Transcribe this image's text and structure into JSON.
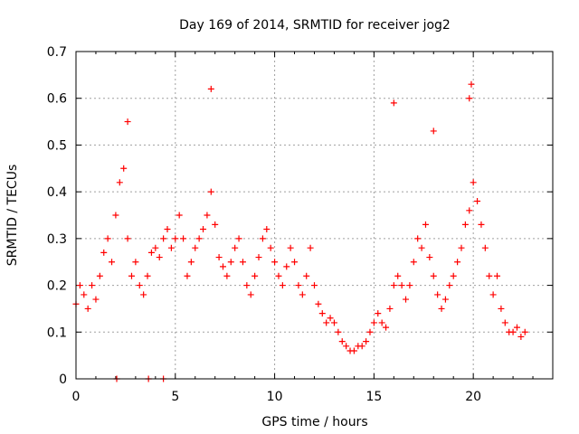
{
  "chart_data": {
    "type": "scatter",
    "title": "Day 169 of 2014, SRMTID for receiver jog2",
    "xlabel": "GPS time / hours",
    "ylabel": "SRMTID / TECUs",
    "xlim": [
      0,
      24
    ],
    "ylim": [
      0,
      0.7
    ],
    "xticks": [
      "0",
      "5",
      "10",
      "15",
      "20"
    ],
    "yticks": [
      "0",
      "0.1",
      "0.2",
      "0.3",
      "0.4",
      "0.5",
      "0.6",
      "0.7"
    ],
    "grid": true,
    "marker": "plus",
    "series": [
      {
        "name": "SRMTID",
        "color": "#ff0000",
        "x": [
          0.0,
          0.2,
          0.4,
          0.6,
          0.8,
          1.0,
          1.2,
          1.4,
          1.6,
          1.8,
          2.0,
          2.2,
          2.4,
          2.6,
          2.8,
          3.0,
          3.2,
          3.4,
          3.6,
          3.8,
          4.0,
          4.2,
          4.4,
          4.6,
          4.8,
          5.0,
          5.2,
          5.4,
          5.6,
          5.8,
          6.0,
          6.2,
          6.4,
          6.6,
          6.8,
          7.0,
          7.2,
          7.4,
          7.6,
          7.8,
          8.0,
          8.2,
          8.4,
          8.6,
          8.8,
          9.0,
          9.2,
          9.4,
          9.6,
          9.8,
          10.0,
          10.2,
          10.4,
          10.6,
          10.8,
          11.0,
          11.2,
          11.4,
          11.6,
          11.8,
          12.0,
          12.2,
          12.4,
          12.6,
          12.8,
          13.0,
          13.2,
          13.4,
          13.6,
          13.8,
          14.0,
          14.2,
          14.4,
          14.6,
          14.8,
          15.0,
          15.2,
          15.4,
          15.6,
          15.8,
          16.0,
          16.2,
          16.4,
          16.6,
          16.8,
          17.0,
          17.2,
          17.4,
          17.6,
          17.8,
          18.0,
          18.2,
          18.4,
          18.6,
          18.8,
          19.0,
          19.2,
          19.4,
          19.6,
          19.8,
          20.0,
          20.2,
          20.4,
          20.6,
          20.8,
          21.0,
          21.2,
          21.4,
          21.6,
          21.8,
          22.0,
          22.2,
          22.4,
          22.6,
          2.05,
          3.65,
          4.4,
          2.6,
          6.8,
          16.0,
          18.0,
          19.8,
          19.9
        ],
        "y": [
          0.16,
          0.2,
          0.18,
          0.15,
          0.2,
          0.17,
          0.22,
          0.27,
          0.3,
          0.25,
          0.35,
          0.42,
          0.45,
          0.3,
          0.22,
          0.25,
          0.2,
          0.18,
          0.22,
          0.27,
          0.28,
          0.26,
          0.3,
          0.32,
          0.28,
          0.3,
          0.35,
          0.3,
          0.22,
          0.25,
          0.28,
          0.3,
          0.32,
          0.35,
          0.4,
          0.33,
          0.26,
          0.24,
          0.22,
          0.25,
          0.28,
          0.3,
          0.25,
          0.2,
          0.18,
          0.22,
          0.26,
          0.3,
          0.32,
          0.28,
          0.25,
          0.22,
          0.2,
          0.24,
          0.28,
          0.25,
          0.2,
          0.18,
          0.22,
          0.28,
          0.2,
          0.16,
          0.14,
          0.12,
          0.13,
          0.12,
          0.1,
          0.08,
          0.07,
          0.06,
          0.06,
          0.07,
          0.07,
          0.08,
          0.1,
          0.12,
          0.14,
          0.12,
          0.11,
          0.15,
          0.2,
          0.22,
          0.2,
          0.17,
          0.2,
          0.25,
          0.3,
          0.28,
          0.33,
          0.26,
          0.22,
          0.18,
          0.15,
          0.17,
          0.2,
          0.22,
          0.25,
          0.28,
          0.33,
          0.36,
          0.42,
          0.38,
          0.33,
          0.28,
          0.22,
          0.18,
          0.22,
          0.15,
          0.12,
          0.1,
          0.1,
          0.11,
          0.09,
          0.1,
          0.0,
          0.0,
          0.0,
          0.55,
          0.62,
          0.59,
          0.53,
          0.6,
          0.63
        ]
      }
    ]
  }
}
